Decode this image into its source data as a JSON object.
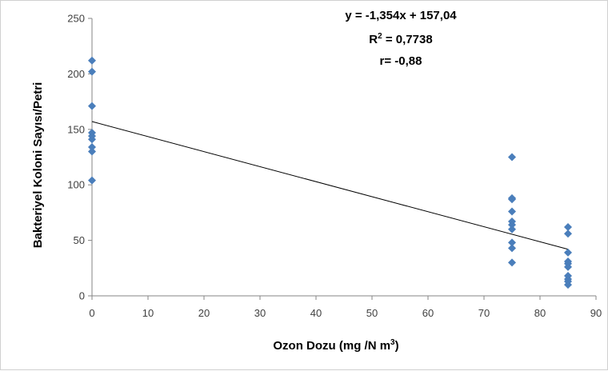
{
  "chart_data": {
    "type": "scatter",
    "title": "",
    "xlabel": "Ozon Dozu (mg /N m",
    "xlabel_sup": "3",
    "xlabel_end": ")",
    "ylabel": "Bakteriyel Koloni Sayısı/Petri",
    "xlim": [
      0,
      90
    ],
    "ylim": [
      0,
      250
    ],
    "x_ticks": [
      0,
      10,
      20,
      30,
      40,
      50,
      60,
      70,
      80,
      90
    ],
    "y_ticks": [
      0,
      50,
      100,
      150,
      200,
      250
    ],
    "x_tick_labels": [
      "0",
      "10",
      "20",
      "30",
      "40",
      "50",
      "60",
      "70",
      "80",
      "90"
    ],
    "y_tick_labels": [
      "0",
      "50",
      "100",
      "150",
      "200",
      "250"
    ],
    "grid": false,
    "legend": false,
    "marker": "diamond",
    "marker_color": "#4a7ebb",
    "trendline": {
      "slope": -1.354,
      "intercept": 157.04,
      "color": "#000000"
    },
    "annotations": {
      "equation": "y = -1,354x + 157,04",
      "r2_prefix": "R",
      "r2_sup": "2",
      "r2_value": " = 0,7738",
      "r": "r= -0,88"
    },
    "series": [
      {
        "points": [
          [
            0,
            212
          ],
          [
            0,
            202
          ],
          [
            0,
            171
          ],
          [
            0,
            147
          ],
          [
            0,
            144
          ],
          [
            0,
            141
          ],
          [
            0,
            134
          ],
          [
            0,
            130
          ],
          [
            0,
            104
          ],
          [
            75,
            125
          ],
          [
            75,
            88
          ],
          [
            75,
            87
          ],
          [
            75,
            76
          ],
          [
            75,
            67
          ],
          [
            75,
            64
          ],
          [
            75,
            60
          ],
          [
            75,
            48
          ],
          [
            75,
            43
          ],
          [
            75,
            30
          ],
          [
            85,
            62
          ],
          [
            85,
            56
          ],
          [
            85,
            39
          ],
          [
            85,
            31
          ],
          [
            85,
            29
          ],
          [
            85,
            26
          ],
          [
            85,
            18
          ],
          [
            85,
            15
          ],
          [
            85,
            13
          ],
          [
            85,
            10
          ]
        ]
      }
    ]
  }
}
